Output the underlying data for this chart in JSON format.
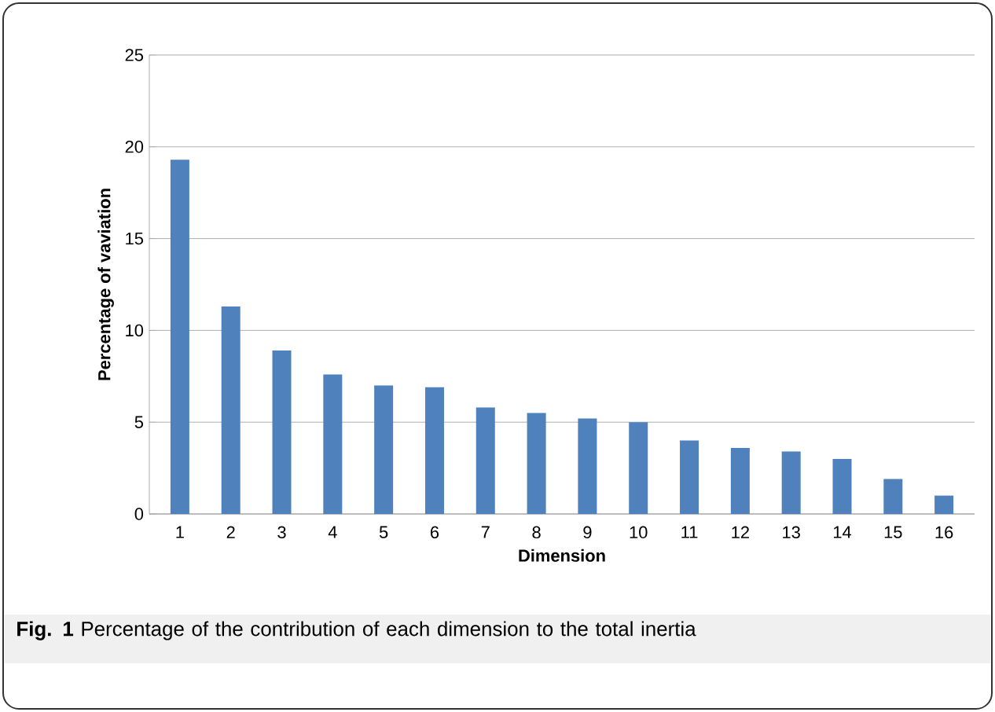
{
  "chart_data": {
    "type": "bar",
    "xlabel": "Dimension",
    "ylabel": "Percentage of vaviation",
    "categories": [
      "1",
      "2",
      "3",
      "4",
      "5",
      "6",
      "7",
      "8",
      "9",
      "10",
      "11",
      "12",
      "13",
      "14",
      "15",
      "16"
    ],
    "values": [
      19.3,
      11.3,
      8.9,
      7.6,
      7.0,
      6.9,
      5.8,
      5.5,
      5.2,
      5.0,
      4.0,
      3.6,
      3.4,
      3.0,
      1.9,
      1.0
    ],
    "color": "#4f81bd",
    "ylim": [
      0,
      25
    ],
    "yticks": [
      0,
      5,
      10,
      15,
      20,
      25
    ],
    "grid": "y",
    "annotations": [
      "**Fig. 1** Percentage of the contribution of each dimension to the total inertia"
    ]
  }
}
